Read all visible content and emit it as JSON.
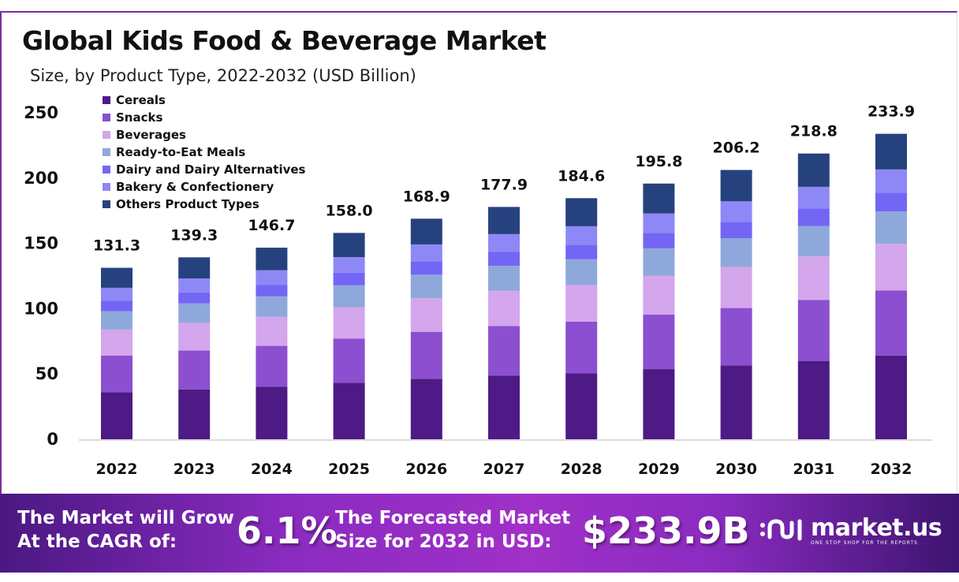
{
  "header": {
    "title": "Global Kids Food & Beverage Market",
    "subtitle": "Size, by Product Type, 2022-2032 (USD Billion)"
  },
  "chart_data": {
    "type": "bar",
    "stacked": true,
    "title": "Global Kids Food & Beverage Market",
    "subtitle": "Size, by Product Type, 2022-2032 (USD Billion)",
    "xlabel": "",
    "ylabel": "",
    "ylim": [
      0,
      250
    ],
    "yticks": [
      0,
      50,
      100,
      150,
      200,
      250
    ],
    "grid": false,
    "legend_position": "top-left",
    "categories": [
      "2022",
      "2023",
      "2024",
      "2025",
      "2026",
      "2027",
      "2028",
      "2029",
      "2030",
      "2031",
      "2032"
    ],
    "totals": [
      131.3,
      139.3,
      146.7,
      158.0,
      168.9,
      177.9,
      184.6,
      195.8,
      206.2,
      218.8,
      233.9
    ],
    "series": [
      {
        "name": "Cereals",
        "color": "#4e1a86",
        "values": [
          36.0,
          38.2,
          40.2,
          43.3,
          46.3,
          48.8,
          50.6,
          53.7,
          56.5,
          60.0,
          64.1
        ]
      },
      {
        "name": "Snacks",
        "color": "#8b4fd0",
        "values": [
          28.0,
          29.7,
          31.3,
          33.7,
          36.0,
          37.9,
          39.4,
          41.8,
          44.0,
          46.7,
          49.9
        ]
      },
      {
        "name": "Beverages",
        "color": "#d4a6ec",
        "values": [
          20.0,
          21.2,
          22.3,
          24.1,
          25.7,
          27.1,
          28.1,
          29.8,
          31.4,
          33.3,
          35.6
        ]
      },
      {
        "name": "Ready-to-Eat Meals",
        "color": "#8fa8dc",
        "values": [
          14.0,
          14.9,
          15.6,
          16.8,
          18.0,
          19.0,
          19.7,
          20.9,
          22.0,
          23.3,
          24.9
        ]
      },
      {
        "name": "Dairy and Dairy Alternatives",
        "color": "#7366f4",
        "values": [
          8.0,
          8.5,
          8.9,
          9.6,
          10.3,
          10.8,
          11.2,
          11.9,
          12.6,
          13.3,
          14.3
        ]
      },
      {
        "name": "Bakery & Confectionery",
        "color": "#8e88f6",
        "values": [
          10.0,
          10.6,
          11.2,
          12.0,
          12.9,
          13.5,
          14.1,
          14.9,
          15.7,
          16.7,
          17.8
        ]
      },
      {
        "name": "Others Product Types",
        "color": "#26427e",
        "values": [
          15.3,
          16.2,
          17.2,
          18.5,
          19.7,
          20.8,
          21.5,
          22.8,
          24.0,
          25.5,
          27.3
        ]
      }
    ]
  },
  "banner": {
    "cagr_label_line1": "The Market will Grow",
    "cagr_label_line2": "At the CAGR of:",
    "cagr_value": "6.1%",
    "forecast_label_line1": "The Forecasted Market",
    "forecast_label_line2": "Size for 2032 in USD:",
    "forecast_value": "$233.9B",
    "brand_name": "market.us",
    "brand_tagline": "ONE STOP SHOP FOR THE REPORTS",
    "brand_icon": "market-us-logo-icon"
  }
}
